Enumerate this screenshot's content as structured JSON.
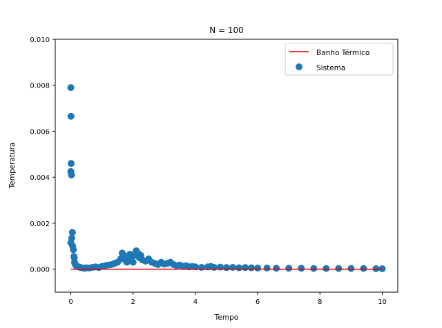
{
  "colors": {
    "background": "#ffffff",
    "axes": "#000000",
    "series_line": "#dd0000",
    "series_scatter": "#1f77b4",
    "legend_border": "#cccccc"
  },
  "chart_data": {
    "type": "scatter",
    "title": "N = 100",
    "xlabel": "Tempo",
    "ylabel": "Temperatura",
    "xlim": [
      -0.5,
      10.5
    ],
    "ylim": [
      -0.001,
      0.01
    ],
    "xticks": [
      0,
      2,
      4,
      6,
      8,
      10
    ],
    "xtick_labels": [
      "0",
      "2",
      "4",
      "6",
      "8",
      "10"
    ],
    "yticks": [
      0.0,
      0.002,
      0.004,
      0.006,
      0.008,
      0.01
    ],
    "ytick_labels": [
      "0.000",
      "0.002",
      "0.004",
      "0.006",
      "0.008",
      "0.010"
    ],
    "grid": false,
    "legend_position": "top-right",
    "series": [
      {
        "name": "Banho Térmico",
        "kind": "line",
        "color": "#dd0000",
        "x": [
          0,
          10
        ],
        "y": [
          0.0,
          0.0
        ]
      },
      {
        "name": "Sistema",
        "kind": "scatter",
        "color": "#1f77b4",
        "points": [
          [
            0.0,
            0.0079
          ],
          [
            0.005,
            0.00665
          ],
          [
            0.01,
            0.0046
          ],
          [
            0.0,
            0.00425
          ],
          [
            0.02,
            0.0041
          ],
          [
            0.05,
            0.0016
          ],
          [
            0.03,
            0.00135
          ],
          [
            0.0,
            0.00115
          ],
          [
            0.06,
            0.001
          ],
          [
            0.08,
            0.00085
          ],
          [
            0.1,
            0.00055
          ],
          [
            0.11,
            0.0005
          ],
          [
            0.12,
            0.0003
          ],
          [
            0.13,
            0.00025
          ],
          [
            0.15,
            0.0002
          ],
          [
            0.17,
            0.00015
          ],
          [
            0.2,
            0.00012
          ],
          [
            0.25,
            0.0001
          ],
          [
            0.3,
            8e-05
          ],
          [
            0.35,
            6e-05
          ],
          [
            0.4,
            5e-05
          ],
          [
            0.45,
            4e-05
          ],
          [
            0.5,
            6e-05
          ],
          [
            0.6,
            5e-05
          ],
          [
            0.7,
            8e-05
          ],
          [
            0.8,
            0.0001
          ],
          [
            0.9,
            7e-05
          ],
          [
            1.0,
            0.00012
          ],
          [
            1.1,
            0.00015
          ],
          [
            1.2,
            0.00018
          ],
          [
            1.3,
            0.0002
          ],
          [
            1.4,
            0.00025
          ],
          [
            1.5,
            0.0003
          ],
          [
            1.6,
            0.00045
          ],
          [
            1.65,
            0.0007
          ],
          [
            1.7,
            0.0006
          ],
          [
            1.75,
            0.0004
          ],
          [
            1.8,
            0.0003
          ],
          [
            1.85,
            0.0005
          ],
          [
            1.9,
            0.00065
          ],
          [
            1.95,
            0.0004
          ],
          [
            2.0,
            0.0003
          ],
          [
            2.05,
            0.0006
          ],
          [
            2.1,
            0.0008
          ],
          [
            2.15,
            0.0007
          ],
          [
            2.2,
            0.0005
          ],
          [
            2.25,
            0.0006
          ],
          [
            2.3,
            0.0004
          ],
          [
            2.4,
            0.00035
          ],
          [
            2.5,
            0.00045
          ],
          [
            2.6,
            0.0003
          ],
          [
            2.7,
            0.00025
          ],
          [
            2.8,
            0.0002
          ],
          [
            2.9,
            0.0003
          ],
          [
            3.0,
            0.00022
          ],
          [
            3.1,
            0.00025
          ],
          [
            3.2,
            0.0003
          ],
          [
            3.3,
            0.0002
          ],
          [
            3.4,
            0.00015
          ],
          [
            3.5,
            0.00018
          ],
          [
            3.6,
            0.00012
          ],
          [
            3.7,
            0.00015
          ],
          [
            3.8,
            0.0001
          ],
          [
            3.9,
            0.00012
          ],
          [
            4.0,
            0.0001
          ],
          [
            4.2,
            8e-05
          ],
          [
            4.4,
            0.0001
          ],
          [
            4.5,
            0.00012
          ],
          [
            4.6,
            8e-05
          ],
          [
            4.8,
            9e-05
          ],
          [
            5.0,
            7e-05
          ],
          [
            5.2,
            8e-05
          ],
          [
            5.4,
            6e-05
          ],
          [
            5.6,
            7e-05
          ],
          [
            5.8,
            6e-05
          ],
          [
            6.0,
            5e-05
          ],
          [
            6.3,
            5e-05
          ],
          [
            6.6,
            4e-05
          ],
          [
            7.0,
            4e-05
          ],
          [
            7.4,
            4e-05
          ],
          [
            7.8,
            3e-05
          ],
          [
            8.2,
            3e-05
          ],
          [
            8.6,
            3e-05
          ],
          [
            9.0,
            3e-05
          ],
          [
            9.4,
            3e-05
          ],
          [
            9.8,
            2e-05
          ],
          [
            10.0,
            2e-05
          ]
        ]
      }
    ]
  }
}
